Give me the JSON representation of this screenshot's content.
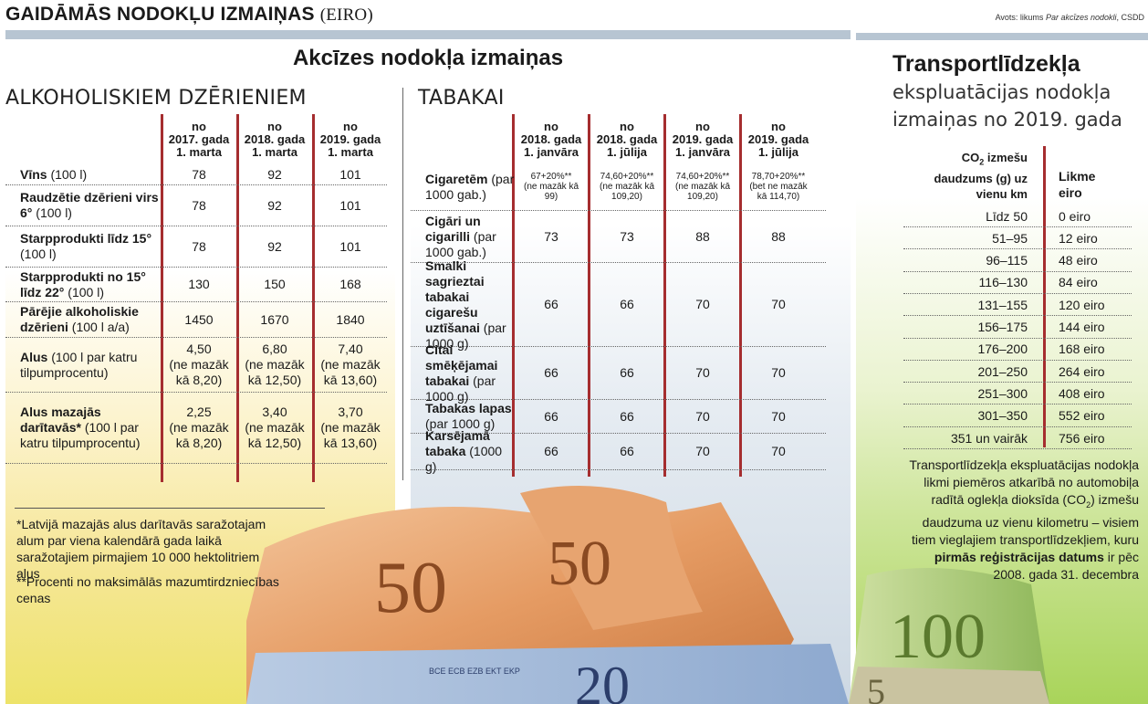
{
  "header": {
    "title": "GAIDĀMĀS NODOKĻU IZMAIŅAS",
    "title_suffix": "(EIRO)",
    "source_prefix": "Avots: likums ",
    "source_italic": "Par akcīzes nodokli",
    "source_suffix": ", CSDD"
  },
  "excise": {
    "title": "Akcīzes nodokļa izmaiņas",
    "alcohol": {
      "heading": "ALKOHOLISKIEM DZĒRIENIEM",
      "columns": [
        [
          "no",
          "2017. gada",
          "1. marta"
        ],
        [
          "no",
          "2018. gada",
          "1. marta"
        ],
        [
          "no",
          "2019. gada",
          "1. marta"
        ]
      ],
      "rows": [
        {
          "name": "Vīns",
          "unit": " (100 l)",
          "values": [
            [
              "78"
            ],
            [
              "92"
            ],
            [
              "101"
            ]
          ]
        },
        {
          "name": "Raudzētie dzērieni virs 6°",
          "unit": " (100 l)",
          "values": [
            [
              "78"
            ],
            [
              "92"
            ],
            [
              "101"
            ]
          ]
        },
        {
          "name": "Starpprodukti līdz 15°",
          "unit": " (100 l)",
          "values": [
            [
              "78"
            ],
            [
              "92"
            ],
            [
              "101"
            ]
          ]
        },
        {
          "name": "Starpprodukti no 15° līdz 22°",
          "unit": " (100 l)",
          "values": [
            [
              "130"
            ],
            [
              "150"
            ],
            [
              "168"
            ]
          ]
        },
        {
          "name": "Pārējie alkoholiskie dzērieni",
          "unit": " (100 l a/a)",
          "values": [
            [
              "1450"
            ],
            [
              "1670"
            ],
            [
              "1840"
            ]
          ]
        },
        {
          "name": "Alus",
          "unit": " (100 l par katru tilpumprocentu)",
          "values": [
            [
              "4,50",
              "(ne mazāk",
              "kā 8,20)"
            ],
            [
              "6,80",
              "(ne mazāk",
              "kā 12,50)"
            ],
            [
              "7,40",
              "(ne mazāk",
              "kā 13,60)"
            ]
          ]
        },
        {
          "name": "Alus mazajās darītavās*",
          "unit": " (100 l par katru tilpumprocentu)",
          "values": [
            [
              "2,25",
              "(ne mazāk",
              "kā 8,20)"
            ],
            [
              "3,40",
              "(ne mazāk",
              "kā 12,50)"
            ],
            [
              "3,70",
              "(ne mazāk",
              "kā 13,60)"
            ]
          ]
        }
      ]
    },
    "tobacco": {
      "heading": "TABAKAI",
      "columns": [
        [
          "no",
          "2018. gada",
          "1. janvāra"
        ],
        [
          "no",
          "2018. gada",
          "1. jūlija"
        ],
        [
          "no",
          "2019. gada",
          "1. janvāra"
        ],
        [
          "no",
          "2019. gada",
          "1. jūlija"
        ]
      ],
      "rows": [
        {
          "name": "Cigaretēm",
          "unit": " (par 1000 gab.)",
          "values": [
            [
              "67+20%**",
              "(ne mazāk kā",
              "99)"
            ],
            [
              "74,60+20%**",
              "(ne mazāk kā",
              "109,20)"
            ],
            [
              "74,60+20%**",
              "(ne mazāk kā",
              "109,20)"
            ],
            [
              "78,70+20%**",
              "(bet ne mazāk",
              "kā 114,70)"
            ]
          ]
        },
        {
          "name": "Cigāri un cigarilli",
          "unit": " (par 1000 gab.)",
          "values": [
            [
              "73"
            ],
            [
              "73"
            ],
            [
              "88"
            ],
            [
              "88"
            ]
          ]
        },
        {
          "name": "Smalki sagrieztai tabakai cigarešu uztīšanai",
          "unit": " (par 1000 g)",
          "values": [
            [
              "66"
            ],
            [
              "66"
            ],
            [
              "70"
            ],
            [
              "70"
            ]
          ]
        },
        {
          "name": "Citai smēķējamai tabakai",
          "unit": " (par 1000 g)",
          "values": [
            [
              "66"
            ],
            [
              "66"
            ],
            [
              "70"
            ],
            [
              "70"
            ]
          ]
        },
        {
          "name": "Tabakas lapas",
          "unit": " (par 1000 g)",
          "values": [
            [
              "66"
            ],
            [
              "66"
            ],
            [
              "70"
            ],
            [
              "70"
            ]
          ]
        },
        {
          "name": "Karsējamā tabaka",
          "unit": " (1000 g)",
          "values": [
            [
              "66"
            ],
            [
              "66"
            ],
            [
              "70"
            ],
            [
              "70"
            ]
          ]
        }
      ]
    },
    "footnotes": [
      "*Latvijā mazajās alus darītavās saražotajam alum par viena kalendārā gada laikā saražotajiem pirmajiem 10 000 hektolitriem alus",
      "**Procenti no maksimālās mazumtirdzniecības cenas"
    ]
  },
  "vehicle_tax": {
    "title": "Transportlīdzekļa",
    "subtitle_line1": "ekspluatācijas nodokļa",
    "subtitle_line2": "izmaiņas no 2019. gada",
    "col1_header_co": "CO",
    "col1_header_sub": "2",
    "col1_header_rest1": " izmešu",
    "col1_header_line2": "daudzums (g) uz",
    "col1_header_line3": "vienu km",
    "col2_header_line1": "Likme",
    "col2_header_line2": "eiro",
    "rows": [
      {
        "range": "Līdz 50",
        "rate": "0 eiro"
      },
      {
        "range": "51–95",
        "rate": "12 eiro"
      },
      {
        "range": "96–115",
        "rate": "48 eiro"
      },
      {
        "range": "116–130",
        "rate": "84 eiro"
      },
      {
        "range": "131–155",
        "rate": "120 eiro"
      },
      {
        "range": "156–175",
        "rate": "144 eiro"
      },
      {
        "range": "176–200",
        "rate": "168 eiro"
      },
      {
        "range": "201–250",
        "rate": "264 eiro"
      },
      {
        "range": "251–300",
        "rate": "408 eiro"
      },
      {
        "range": "301–350",
        "rate": "552 eiro"
      },
      {
        "range": "351 un vairāk",
        "rate": "756 eiro"
      }
    ],
    "desc_part1": "Transportlīdzekļa ekspluatācijas nodokļa likmi piemēros atkarībā no automobiļa radītā oglekļa dioksīda (CO",
    "desc_sub": "2",
    "desc_part2": ") izmešu daudzuma uz vienu kilometru – visiem tiem vieglajiem transportlīdzekļiem, kuru ",
    "desc_bold": "pirmās reģistrācijas datums",
    "desc_part3": " ir pēc 2008. gada 31. decembra"
  },
  "banknotes": {
    "label_50": "50",
    "label_100": "100",
    "label_20": "20",
    "label_5": "5",
    "euro_text": "BCE ECB EZB EKT EKP"
  },
  "colors": {
    "accent_red": "#a52d2f",
    "band": "#b7c5d2"
  }
}
